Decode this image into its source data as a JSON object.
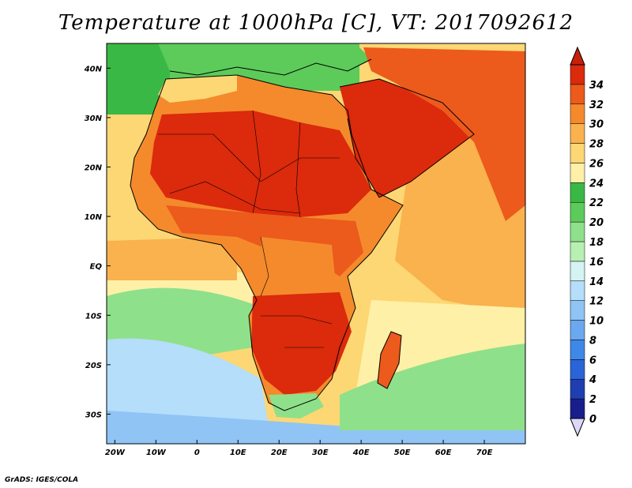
{
  "title": "Temperature at 1000hPa [C], VT: 2017092612",
  "credit": "GrADS: IGES/COLA",
  "axes": {
    "x_ticks": [
      {
        "lon": -20,
        "label": "20W"
      },
      {
        "lon": -10,
        "label": "10W"
      },
      {
        "lon": 0,
        "label": "0"
      },
      {
        "lon": 10,
        "label": "10E"
      },
      {
        "lon": 20,
        "label": "20E"
      },
      {
        "lon": 30,
        "label": "30E"
      },
      {
        "lon": 40,
        "label": "40E"
      },
      {
        "lon": 50,
        "label": "50E"
      },
      {
        "lon": 60,
        "label": "60E"
      },
      {
        "lon": 70,
        "label": "70E"
      }
    ],
    "y_ticks": [
      {
        "lat": 40,
        "label": "40N"
      },
      {
        "lat": 30,
        "label": "30N"
      },
      {
        "lat": 20,
        "label": "20N"
      },
      {
        "lat": 10,
        "label": "10N"
      },
      {
        "lat": 0,
        "label": "EQ"
      },
      {
        "lat": -10,
        "label": "10S"
      },
      {
        "lat": -20,
        "label": "20S"
      },
      {
        "lat": -30,
        "label": "30S"
      }
    ],
    "lon_range": [
      -22,
      80
    ],
    "lat_range": [
      -36,
      45
    ]
  },
  "colorbar": {
    "levels": [
      "0",
      "2",
      "4",
      "6",
      "8",
      "10",
      "12",
      "14",
      "16",
      "18",
      "20",
      "22",
      "24",
      "26",
      "28",
      "30",
      "32",
      "34"
    ],
    "colors": [
      "#1a1e8c",
      "#1f3fb0",
      "#2a64d6",
      "#3f88e8",
      "#6aa8ef",
      "#8fc4f5",
      "#b4def9",
      "#d6f3f3",
      "#b8f0b4",
      "#8fe08a",
      "#5ccb5a",
      "#3ab845",
      "#fff0a8",
      "#fcd774",
      "#f9b24d",
      "#f48a2c",
      "#ec5a1c",
      "#db2a0c"
    ],
    "under_color": "#dcd8f8",
    "over_color": "#c8200a"
  },
  "map": {
    "ocean_colors": {
      "north_atlantic": "#3ab845",
      "med": "#5ccb5a",
      "trop_atlantic": "#fcd774",
      "guinea": "#f9b24d",
      "south_atlantic_warm": "#fff0a8",
      "south_atlantic_mid": "#8fe08a",
      "south_atlantic_cool": "#b4def9",
      "southern_ocean": "#8fc4f5",
      "indian": "#fcd774",
      "indian_south": "#fff0a8",
      "indian_cool": "#8fe08a"
    },
    "land_colors": {
      "sahara": "#db2a0c",
      "north_coast": "#f48a2c",
      "maghreb": "#fcd774",
      "central": "#ec5a1c",
      "congo": "#f48a2c",
      "southern": "#db2a0c",
      "cape": "#8fe08a",
      "arabia": "#db2a0c",
      "iran": "#ec5a1c",
      "europe": "#5ccb5a",
      "madagascar": "#ec5a1c"
    }
  }
}
